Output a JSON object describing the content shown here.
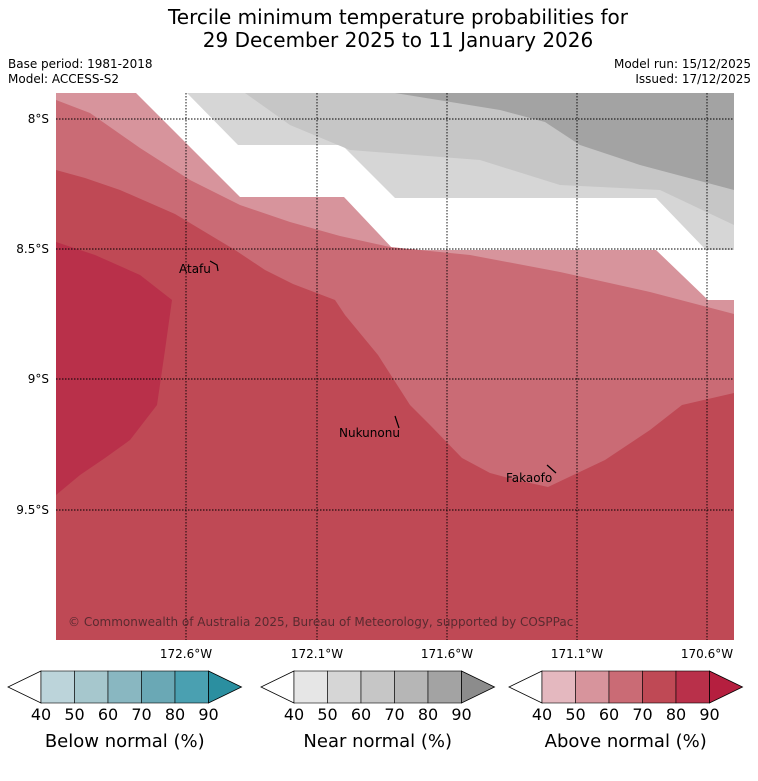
{
  "title": {
    "line1": "Tercile minimum temperature probabilities for",
    "line2": "29 December 2025 to 11 January 2026"
  },
  "meta_left": {
    "base_period": "Base period: 1981-2018",
    "model": "Model: ACCESS-S2"
  },
  "meta_right": {
    "model_run": "Model run: 15/12/2025",
    "issued": "Issued: 17/12/2025"
  },
  "map": {
    "lat_labels": [
      "8°S",
      "8.5°S",
      "9°S",
      "9.5°S"
    ],
    "lon_labels": [
      "172.6°W",
      "172.1°W",
      "171.6°W",
      "171.1°W",
      "170.6°W"
    ],
    "places": [
      "Atafu",
      "Nukunonu",
      "Fakaofo"
    ],
    "copyright": "© Commonwealth of Australia 2025, Bureau of Meteorology, supported by COSPPac"
  },
  "colorbars": [
    {
      "label": "Below normal (%)",
      "ticks": [
        "40",
        "50",
        "60",
        "70",
        "80",
        "90"
      ],
      "colors": [
        "#ffffff",
        "#bcd4da",
        "#a6c7cd",
        "#89b7c1",
        "#6aa8b5",
        "#4aa0b1",
        "#2b8fa0"
      ]
    },
    {
      "label": "Near normal (%)",
      "ticks": [
        "40",
        "50",
        "60",
        "70",
        "80",
        "90"
      ],
      "colors": [
        "#ffffff",
        "#e6e6e6",
        "#d6d6d6",
        "#c6c6c6",
        "#b6b6b6",
        "#a3a3a3",
        "#8c8c8c"
      ]
    },
    {
      "label": "Above normal (%)",
      "ticks": [
        "40",
        "50",
        "60",
        "70",
        "80",
        "90"
      ],
      "colors": [
        "#ffffff",
        "#e4b8bf",
        "#d7949c",
        "#ca6b75",
        "#bf4955",
        "#b9304a",
        "#b51f3f"
      ]
    }
  ]
}
